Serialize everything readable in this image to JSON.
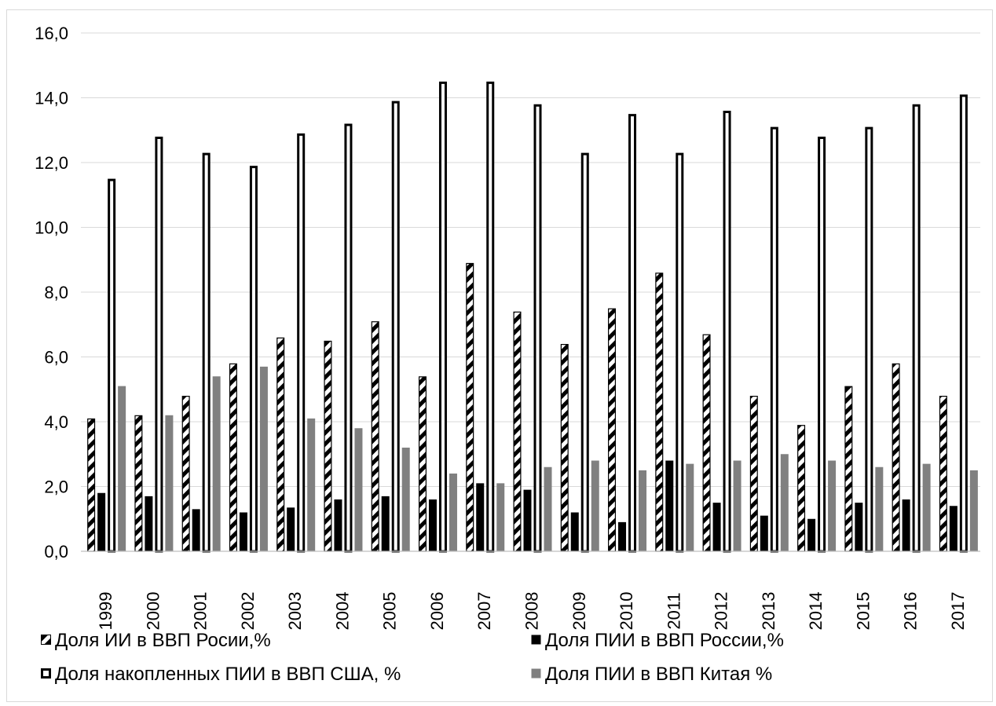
{
  "chart_data": {
    "type": "bar",
    "title": "",
    "xlabel": "",
    "ylabel": "",
    "ylim": [
      0,
      16
    ],
    "y_ticks": [
      "0,0",
      "2,0",
      "4,0",
      "6,0",
      "8,0",
      "10,0",
      "12,0",
      "14,0",
      "16,0"
    ],
    "grid": true,
    "legend_position": "bottom",
    "categories": [
      "1999",
      "2000",
      "2001",
      "2002",
      "2003",
      "2004",
      "2005",
      "2006",
      "2007",
      "2008",
      "2009",
      "2010",
      "2011",
      "2012",
      "2013",
      "2014",
      "2015",
      "2016",
      "2017"
    ],
    "series": [
      {
        "name": "Доля ИИ в ВВП Росии,%",
        "pattern": "hatched",
        "values": [
          4.1,
          4.2,
          4.8,
          5.8,
          6.6,
          6.5,
          7.1,
          5.4,
          8.9,
          7.4,
          6.4,
          7.5,
          8.6,
          6.7,
          4.8,
          3.9,
          5.1,
          5.8,
          4.8
        ]
      },
      {
        "name": "Доля ПИИ в ВВП России,%",
        "color": "#000000",
        "values": [
          1.8,
          1.7,
          1.3,
          1.2,
          1.35,
          1.6,
          1.7,
          1.6,
          2.1,
          1.9,
          1.2,
          0.9,
          2.8,
          1.5,
          1.1,
          1.0,
          1.5,
          1.6,
          1.4
        ]
      },
      {
        "name": "Доля накопленных ПИИ в ВВП США, %",
        "pattern": "outline",
        "values": [
          11.5,
          12.8,
          12.3,
          11.9,
          12.9,
          13.2,
          13.9,
          14.5,
          14.5,
          13.8,
          12.3,
          13.5,
          12.3,
          13.6,
          13.1,
          12.8,
          13.1,
          13.8,
          14.1
        ]
      },
      {
        "name": "Доля ПИИ в ВВП Китая %",
        "color": "#808080",
        "values": [
          5.1,
          4.2,
          5.4,
          5.7,
          4.1,
          3.8,
          3.2,
          2.4,
          2.1,
          2.6,
          2.8,
          2.5,
          2.7,
          2.8,
          3.0,
          2.8,
          2.6,
          2.7,
          2.5
        ]
      }
    ]
  }
}
